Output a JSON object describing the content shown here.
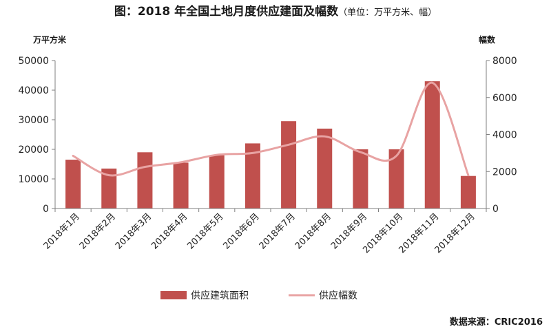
{
  "title": {
    "main": "图：2018 年全国土地月度供应建面及幅数",
    "unit": "（单位：万平方米、幅）"
  },
  "source": "数据来源：CRIC2016",
  "colors": {
    "bar": "#c0504d",
    "line": "#e8a3a3",
    "axis": "#7f7f7f"
  },
  "chart_data": {
    "type": "bar",
    "categories": [
      "2018年1月",
      "2018年2月",
      "2018年3月",
      "2018年4月",
      "2018年5月",
      "2018年6月",
      "2018年7月",
      "2018年8月",
      "2018年9月",
      "2018年10月",
      "2018年11月",
      "2018年12月"
    ],
    "series": [
      {
        "name": "供应建筑面积",
        "type": "bar",
        "axis": "left",
        "values": [
          16500,
          13500,
          19000,
          15500,
          18000,
          22000,
          29500,
          27000,
          20000,
          20000,
          43000,
          11000
        ]
      },
      {
        "name": "供应幅数",
        "type": "line",
        "axis": "right",
        "values": [
          2850,
          1800,
          2250,
          2500,
          2900,
          3000,
          3450,
          3900,
          3050,
          2850,
          6800,
          1800
        ]
      }
    ],
    "left_axis": {
      "label": "万平方米",
      "ylim": [
        0,
        50000
      ],
      "ticks": [
        0,
        10000,
        20000,
        30000,
        40000,
        50000
      ]
    },
    "right_axis": {
      "label": "幅数",
      "ylim": [
        0,
        8000
      ],
      "ticks": [
        0,
        2000,
        4000,
        6000,
        8000
      ]
    },
    "grid": false,
    "legend": "bottom"
  }
}
